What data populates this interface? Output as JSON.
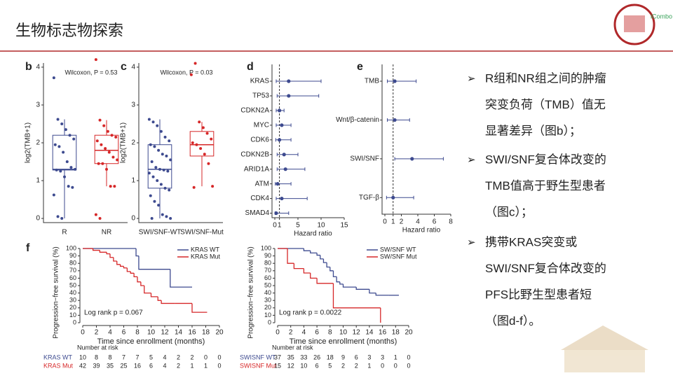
{
  "slide": {
    "title": "生物标志物探索",
    "logo_text": "iCombo",
    "bullets": [
      [
        "R组和NR组之间的肿瘤",
        "突变负荷（TMB）值无",
        "显著差异（图b）；"
      ],
      [
        "SWI/SNF复合体改变的",
        "TMB值高于野生型患者",
        "（图c）；"
      ],
      [
        "携带KRAS突变或",
        "SWI/SNF复合体改变的",
        "PFS比野生型患者短",
        "（图d-f）。"
      ]
    ]
  },
  "chart_data": [
    {
      "type": "box",
      "panel": "b",
      "annotation": "Wilcoxon, P = 0.53",
      "ylabel": "log2(TMB+1)",
      "categories": [
        "R",
        "NR"
      ],
      "ylim": [
        -0.11,
        4.11
      ],
      "yticks": [
        0,
        1,
        2,
        3,
        4
      ],
      "boxes": [
        {
          "color": "#3d4a8f",
          "whisker_low": 0,
          "q1": 1.28,
          "median": 1.3,
          "q3": 2.2,
          "whisker_high": 2.62,
          "points": [
            3.72,
            2.62,
            2.5,
            2.35,
            2.2,
            2.1,
            1.95,
            1.9,
            1.75,
            1.5,
            1.35,
            1.3,
            1.28,
            1.25,
            1.1,
            0.85,
            0.82,
            0.62,
            0.05,
            0
          ]
        },
        {
          "color": "#d62728",
          "whisker_low": 0.85,
          "q1": 1.45,
          "median": 1.8,
          "q3": 2.2,
          "whisker_high": 2.6,
          "points": [
            4.2,
            2.6,
            2.45,
            2.3,
            2.2,
            2.15,
            2.05,
            1.95,
            1.85,
            1.75,
            1.62,
            1.55,
            1.45,
            1.45,
            1.3,
            0.85,
            0.85,
            0.1,
            0
          ]
        }
      ]
    },
    {
      "type": "box",
      "panel": "c",
      "annotation": "Wilcoxon, P = 0.03",
      "ylabel": "log2(TMB+1)",
      "categories": [
        "SWI/SNF-WT",
        "SWI/SNF-Mut"
      ],
      "ylim": [
        -0.11,
        4.11
      ],
      "yticks": [
        0,
        1,
        2,
        3,
        4
      ],
      "boxes": [
        {
          "color": "#3d4a8f",
          "whisker_low": 0,
          "q1": 0.8,
          "median": 1.3,
          "q3": 1.95,
          "whisker_high": 2.62,
          "points": [
            2.62,
            2.55,
            2.45,
            2.3,
            2.15,
            2.05,
            1.95,
            1.9,
            1.8,
            1.7,
            1.65,
            1.55,
            1.5,
            1.35,
            1.3,
            1.28,
            1.25,
            1.2,
            1.1,
            1,
            0.9,
            0.8,
            0.75,
            0.6,
            0.45,
            0.35,
            0.1,
            0.05,
            0,
            0
          ]
        },
        {
          "color": "#d62728",
          "whisker_low": 0.85,
          "q1": 1.65,
          "median": 1.95,
          "q3": 2.3,
          "whisker_high": 2.55,
          "points": [
            3.8,
            4.1,
            2.55,
            2.4,
            2.25,
            2.1,
            2,
            1.95,
            1.85,
            1.7,
            1.45,
            0.85,
            0.82
          ]
        }
      ]
    },
    {
      "type": "forest",
      "panel": "d",
      "xlabel": "Hazard ratio",
      "color": "#3d4a8f",
      "reference": 1,
      "categories": [
        "KRAS",
        "TP53",
        "CDKN2A",
        "MYC",
        "CDK6",
        "CDKN2B",
        "ARID1A",
        "ATM",
        "CDK4",
        "SMAD4"
      ],
      "values": [
        3,
        3,
        1,
        1.5,
        1,
        2,
        2.3,
        0.6,
        1.5,
        0.3
      ],
      "lower": [
        0.3,
        0.5,
        0.3,
        0.3,
        0.2,
        0.5,
        0.5,
        0.1,
        0.3,
        0.05
      ],
      "upper": [
        10,
        9.5,
        2,
        3.5,
        3.5,
        5,
        6.5,
        3.5,
        7,
        3
      ],
      "xlim": [
        0,
        15
      ],
      "xticks": [
        0,
        1,
        5,
        10,
        15
      ]
    },
    {
      "type": "forest",
      "panel": "e",
      "xlabel": "Hazard ratio",
      "color": "#3d4a8f",
      "reference": 1,
      "categories": [
        "TMB",
        "Wnt/β-catenin",
        "SWI/SNF",
        "TGF-β"
      ],
      "values": [
        1.2,
        1.2,
        3.3,
        1
      ],
      "lower": [
        0.3,
        0.3,
        1.2,
        0.2
      ],
      "upper": [
        3.8,
        3,
        7.1,
        3.5
      ],
      "xlim": [
        0,
        8
      ],
      "xticks": [
        0,
        1,
        2,
        4,
        6,
        8
      ]
    },
    {
      "type": "survival",
      "panel": "f",
      "ylabel": "Progression−free survival (%)",
      "xlabel": "Time since enrollment (months)",
      "annotation": "Log rank p = 0.067",
      "legend": "upper right",
      "xlim": [
        0,
        20
      ],
      "xticks": [
        0,
        2,
        4,
        6,
        8,
        10,
        12,
        14,
        16,
        18,
        20
      ],
      "ylim": [
        0,
        100
      ],
      "yticks": [
        0,
        10,
        20,
        30,
        40,
        50,
        60,
        70,
        80,
        90,
        100
      ],
      "series": [
        {
          "name": "KRAS WT",
          "color": "#3d4a8f",
          "x": [
            0,
            7.8,
            8.2,
            12.8,
            16
          ],
          "values": [
            100,
            90,
            72,
            48,
            48
          ]
        },
        {
          "name": "KRAS Mut",
          "color": "#d62728",
          "x": [
            0,
            1.5,
            2.5,
            3.5,
            4,
            4.5,
            5,
            5.5,
            6,
            6.5,
            7,
            7.5,
            8,
            8.5,
            9,
            10,
            11,
            11.5,
            13.5,
            16,
            18.2
          ],
          "values": [
            100,
            97.6,
            95,
            92.8,
            88,
            83,
            78.5,
            76,
            73.8,
            69,
            66.7,
            61.9,
            55,
            50,
            40,
            35,
            30,
            26,
            26,
            14,
            14
          ]
        }
      ],
      "risk_title": "Number at risk",
      "risk_rows": [
        {
          "label": "KRAS WT",
          "values": [
            10,
            8,
            8,
            7,
            7,
            5,
            4,
            2,
            2,
            0,
            0
          ]
        },
        {
          "label": "KRAS Mut",
          "values": [
            42,
            39,
            35,
            25,
            16,
            6,
            4,
            2,
            1,
            1,
            0
          ]
        }
      ]
    },
    {
      "type": "survival",
      "ylabel": "Progression−free survival (%)",
      "xlabel": "Time since enrollment (months)",
      "annotation": "Log rank p = 0.0022",
      "legend": "upper right",
      "xlim": [
        0,
        20
      ],
      "xticks": [
        0,
        2,
        4,
        6,
        8,
        10,
        12,
        14,
        16,
        18,
        20
      ],
      "ylim": [
        0,
        100
      ],
      "yticks": [
        0,
        10,
        20,
        30,
        40,
        50,
        60,
        70,
        80,
        90,
        100
      ],
      "series": [
        {
          "name": "SW/SNF WT",
          "color": "#3d4a8f",
          "x": [
            0,
            4,
            5,
            6,
            6.5,
            7,
            7.5,
            8,
            8.5,
            9,
            9.5,
            10,
            12,
            14,
            15,
            17,
            18.5
          ],
          "values": [
            100,
            97,
            94,
            91,
            86,
            81,
            75,
            70,
            62,
            55,
            52,
            48,
            45,
            40,
            37,
            37,
            37
          ]
        },
        {
          "name": "SW/SNF Mut",
          "color": "#d62728",
          "x": [
            0,
            1.5,
            2.5,
            4,
            5,
            6,
            8.5,
            15.7
          ],
          "values": [
            100,
            80,
            73,
            67,
            60,
            53,
            20,
            0
          ]
        }
      ],
      "risk_title": "Number at risk",
      "risk_rows": [
        {
          "label": "SWISNF WT",
          "values": [
            37,
            35,
            33,
            26,
            18,
            9,
            6,
            3,
            3,
            1,
            0
          ]
        },
        {
          "label": "SWISNF Mut",
          "values": [
            15,
            12,
            10,
            6,
            5,
            2,
            2,
            1,
            0,
            0,
            0
          ]
        }
      ]
    }
  ]
}
